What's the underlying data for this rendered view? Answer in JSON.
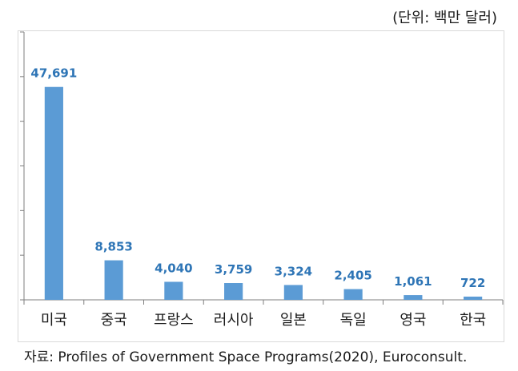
{
  "unit_label": "(단위: 백만 달러)",
  "source": "자료: Profiles of Government Space Programs(2020), Euroconsult.",
  "colors": {
    "bar": "#5b9bd5",
    "label": "#2e75b6",
    "axis": "#7f7f7f"
  },
  "chart_data": {
    "type": "bar",
    "categories": [
      "미국",
      "중국",
      "프랑스",
      "러시아",
      "일본",
      "독일",
      "영국",
      "한국"
    ],
    "values": [
      47691,
      8853,
      4040,
      3759,
      3324,
      2405,
      1061,
      722
    ],
    "value_labels": [
      "47,691",
      "8,853",
      "4,040",
      "3,759",
      "3,324",
      "2,405",
      "1,061",
      "722"
    ],
    "title": "",
    "xlabel": "",
    "ylabel": "",
    "ylim": [
      0,
      60000
    ],
    "y_ticks": [
      0,
      10000,
      20000,
      30000,
      40000,
      50000,
      60000
    ],
    "grid": false,
    "legend": "none"
  }
}
